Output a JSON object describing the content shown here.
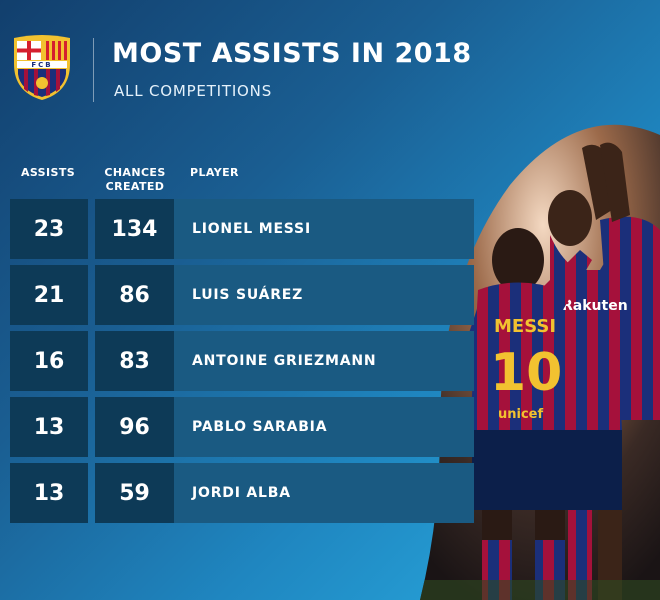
{
  "header": {
    "title": "MOST ASSISTS IN 2018",
    "subtitle": "ALL COMPETITIONS",
    "crest_text": "FCB"
  },
  "columns": {
    "assists": "ASSISTS",
    "chances_line1": "CHANCES",
    "chances_line2": "CREATED",
    "player": "PLAYER"
  },
  "rows": [
    {
      "assists": "23",
      "chances": "134",
      "player": "LIONEL MESSI"
    },
    {
      "assists": "21",
      "chances": "86",
      "player": "LUIS SUÁREZ"
    },
    {
      "assists": "16",
      "chances": "83",
      "player": "ANTOINE GRIEZMANN"
    },
    {
      "assists": "13",
      "chances": "96",
      "player": "PABLO SARABIA"
    },
    {
      "assists": "13",
      "chances": "59",
      "player": "JORDI ALBA"
    }
  ],
  "photo": {
    "shirt_name": "MESSI",
    "shirt_number": "10",
    "sponsor": "unicef",
    "sponsor2": "Rakuten"
  },
  "colors": {
    "row_dark": "#0d3a57",
    "row_light": "#1a5a82",
    "blaugrana_blue": "#1b2f7a",
    "blaugrana_red": "#a5113b",
    "gold": "#f2c230"
  }
}
